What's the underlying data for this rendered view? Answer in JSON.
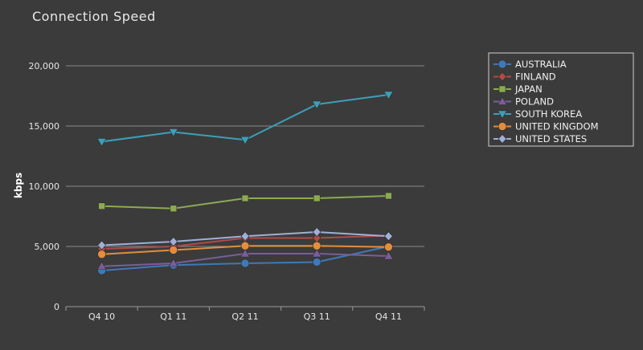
{
  "chart_data": {
    "type": "line",
    "title": "Connection Speed",
    "xlabel": "",
    "ylabel": "kbps",
    "categories": [
      "Q4 10",
      "Q1 11",
      "Q2 11",
      "Q3 11",
      "Q4 11"
    ],
    "ylim": [
      0,
      20000
    ],
    "yticks": [
      0,
      5000,
      10000,
      15000,
      20000
    ],
    "ytick_labels": [
      "0",
      "5,000",
      "10,000",
      "15,000",
      "20,000"
    ],
    "grid": true,
    "legend_position": "top-right",
    "series": [
      {
        "name": "AUSTRALIA",
        "color": "#3f79b8",
        "marker": "circle",
        "values": [
          3000,
          3450,
          3600,
          3700,
          5000
        ]
      },
      {
        "name": "FINLAND",
        "color": "#b04b48",
        "marker": "diamond",
        "values": [
          4800,
          5000,
          5700,
          5700,
          5900
        ]
      },
      {
        "name": "JAPAN",
        "color": "#8cab50",
        "marker": "square",
        "values": [
          8350,
          8150,
          9000,
          9000,
          9200
        ]
      },
      {
        "name": "POLAND",
        "color": "#7a5e98",
        "marker": "triangle",
        "values": [
          3350,
          3600,
          4400,
          4400,
          4200
        ]
      },
      {
        "name": "SOUTH KOREA",
        "color": "#3d9fb8",
        "marker": "triangle-down",
        "values": [
          13700,
          14500,
          13850,
          16800,
          17600
        ]
      },
      {
        "name": "UNITED KINGDOM",
        "color": "#e38d3e",
        "marker": "circle",
        "values": [
          4350,
          4700,
          5050,
          5050,
          4950
        ]
      },
      {
        "name": "UNITED STATES",
        "color": "#9fb0d6",
        "marker": "diamond",
        "values": [
          5100,
          5400,
          5850,
          6200,
          5850
        ]
      }
    ]
  }
}
